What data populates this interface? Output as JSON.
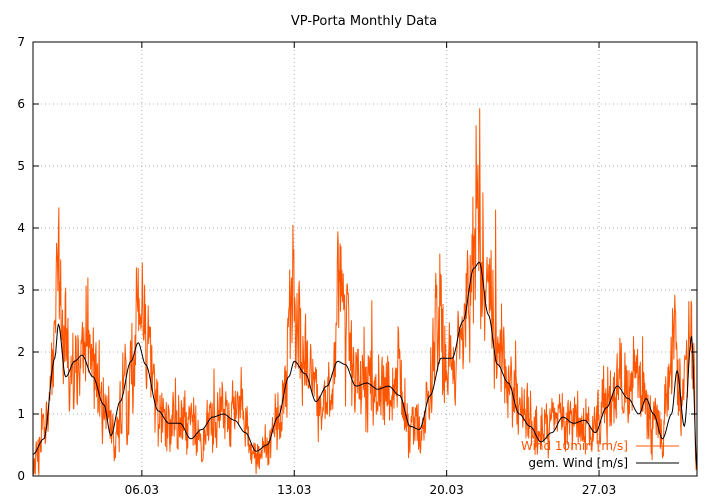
{
  "chart_data": {
    "type": "line",
    "title": "VP-Porta Monthly Data",
    "xlabel": "",
    "ylabel": "",
    "xlim": [
      "2024-03-01 00:00",
      "2024-03-31 12:00"
    ],
    "ylim": [
      0,
      7
    ],
    "y_ticks": [
      0,
      1,
      2,
      3,
      4,
      5,
      6,
      7
    ],
    "x_ticks": [
      {
        "date": "2024-03-06 00:00",
        "label": "06.03"
      },
      {
        "date": "2024-03-13 00:00",
        "label": "13.03"
      },
      {
        "date": "2024-03-20 00:00",
        "label": "20.03"
      },
      {
        "date": "2024-03-27 00:00",
        "label": "27.03"
      }
    ],
    "grid": true,
    "legend_position": "bottom-right",
    "series": [
      {
        "name": "Wind 10min [m/s]",
        "color": "#ff5500",
        "style": "noisy",
        "key_points": [
          [
            "2024-03-01 00:00",
            0.3
          ],
          [
            "2024-03-01 12:00",
            0.7
          ],
          [
            "2024-03-01 22:00",
            1.8
          ],
          [
            "2024-03-02 02:00",
            3.3
          ],
          [
            "2024-03-02 12:00",
            2.0
          ],
          [
            "2024-03-03 00:00",
            1.5
          ],
          [
            "2024-03-03 10:00",
            2.3
          ],
          [
            "2024-03-03 22:00",
            1.7
          ],
          [
            "2024-03-04 10:00",
            1.0
          ],
          [
            "2024-03-04 18:00",
            0.6
          ],
          [
            "2024-03-05 06:00",
            1.5
          ],
          [
            "2024-03-05 16:00",
            2.0
          ],
          [
            "2024-03-05 21:00",
            3.5
          ],
          [
            "2024-03-06 04:00",
            2.0
          ],
          [
            "2024-03-06 18:00",
            1.0
          ],
          [
            "2024-03-07 12:00",
            0.8
          ],
          [
            "2024-03-08 06:00",
            0.9
          ],
          [
            "2024-03-08 18:00",
            0.5
          ],
          [
            "2024-03-09 06:00",
            1.0
          ],
          [
            "2024-03-09 18:00",
            1.1
          ],
          [
            "2024-03-10 12:00",
            1.0
          ],
          [
            "2024-03-11 06:00",
            0.3
          ],
          [
            "2024-03-11 18:00",
            0.6
          ],
          [
            "2024-03-12 12:00",
            1.2
          ],
          [
            "2024-03-12 22:00",
            2.8
          ],
          [
            "2024-03-13 04:00",
            2.2
          ],
          [
            "2024-03-13 16:00",
            1.5
          ],
          [
            "2024-03-14 06:00",
            1.1
          ],
          [
            "2024-03-14 20:00",
            1.6
          ],
          [
            "2024-03-15 02:00",
            3.8
          ],
          [
            "2024-03-15 08:00",
            2.2
          ],
          [
            "2024-03-15 20:00",
            1.4
          ],
          [
            "2024-03-16 12:00",
            1.5
          ],
          [
            "2024-03-17 06:00",
            1.3
          ],
          [
            "2024-03-17 18:00",
            1.6
          ],
          [
            "2024-03-18 08:00",
            0.8
          ],
          [
            "2024-03-18 20:00",
            0.7
          ],
          [
            "2024-03-19 06:00",
            1.4
          ],
          [
            "2024-03-19 14:00",
            2.8
          ],
          [
            "2024-03-19 22:00",
            2.0
          ],
          [
            "2024-03-20 12:00",
            1.8
          ],
          [
            "2024-03-20 22:00",
            2.4
          ],
          [
            "2024-03-21 06:00",
            3.4
          ],
          [
            "2024-03-21 08:00",
            5.2
          ],
          [
            "2024-03-21 10:00",
            3.8
          ],
          [
            "2024-03-21 20:00",
            3.0
          ],
          [
            "2024-03-22 08:00",
            2.0
          ],
          [
            "2024-03-22 20:00",
            1.5
          ],
          [
            "2024-03-23 12:00",
            1.1
          ],
          [
            "2024-03-24 06:00",
            0.7
          ],
          [
            "2024-03-24 18:00",
            1.0
          ],
          [
            "2024-03-25 12:00",
            0.8
          ],
          [
            "2024-03-26 06:00",
            0.9
          ],
          [
            "2024-03-26 16:00",
            0.6
          ],
          [
            "2024-03-27 06:00",
            1.2
          ],
          [
            "2024-03-27 20:00",
            1.5
          ],
          [
            "2024-03-28 08:00",
            1.3
          ],
          [
            "2024-03-28 20:00",
            1.6
          ],
          [
            "2024-03-29 08:00",
            1.0
          ],
          [
            "2024-03-29 20:00",
            0.7
          ],
          [
            "2024-03-30 06:00",
            1.5
          ],
          [
            "2024-03-30 12:00",
            2.1
          ],
          [
            "2024-03-30 20:00",
            1.0
          ],
          [
            "2024-03-31 00:00",
            1.8
          ],
          [
            "2024-03-31 06:00",
            2.2
          ],
          [
            "2024-03-31 12:00",
            0.2
          ]
        ]
      },
      {
        "name": "gem. Wind [m/s]",
        "color": "#000000",
        "style": "smooth",
        "key_points": [
          [
            "2024-03-01 00:00",
            0.35
          ],
          [
            "2024-03-01 12:00",
            0.6
          ],
          [
            "2024-03-02 00:00",
            1.9
          ],
          [
            "2024-03-02 04:00",
            2.45
          ],
          [
            "2024-03-02 12:00",
            1.6
          ],
          [
            "2024-03-02 22:00",
            1.85
          ],
          [
            "2024-03-03 06:00",
            1.95
          ],
          [
            "2024-03-03 18:00",
            1.6
          ],
          [
            "2024-03-04 06:00",
            1.15
          ],
          [
            "2024-03-04 14:00",
            0.65
          ],
          [
            "2024-03-05 00:00",
            1.2
          ],
          [
            "2024-03-05 12:00",
            1.85
          ],
          [
            "2024-03-05 20:00",
            2.15
          ],
          [
            "2024-03-06 04:00",
            1.8
          ],
          [
            "2024-03-06 18:00",
            1.05
          ],
          [
            "2024-03-07 06:00",
            0.85
          ],
          [
            "2024-03-07 18:00",
            0.85
          ],
          [
            "2024-03-08 06:00",
            0.6
          ],
          [
            "2024-03-08 18:00",
            0.75
          ],
          [
            "2024-03-09 06:00",
            0.95
          ],
          [
            "2024-03-09 18:00",
            1.0
          ],
          [
            "2024-03-10 06:00",
            0.9
          ],
          [
            "2024-03-10 18:00",
            0.7
          ],
          [
            "2024-03-11 06:00",
            0.4
          ],
          [
            "2024-03-11 18:00",
            0.5
          ],
          [
            "2024-03-12 06:00",
            0.95
          ],
          [
            "2024-03-12 18:00",
            1.6
          ],
          [
            "2024-03-13 00:00",
            1.85
          ],
          [
            "2024-03-13 12:00",
            1.65
          ],
          [
            "2024-03-14 00:00",
            1.2
          ],
          [
            "2024-03-14 12:00",
            1.45
          ],
          [
            "2024-03-15 00:00",
            1.85
          ],
          [
            "2024-03-15 08:00",
            1.8
          ],
          [
            "2024-03-15 20:00",
            1.45
          ],
          [
            "2024-03-16 08:00",
            1.5
          ],
          [
            "2024-03-16 20:00",
            1.4
          ],
          [
            "2024-03-17 08:00",
            1.45
          ],
          [
            "2024-03-17 20:00",
            1.3
          ],
          [
            "2024-03-18 08:00",
            0.8
          ],
          [
            "2024-03-18 18:00",
            0.75
          ],
          [
            "2024-03-19 06:00",
            1.3
          ],
          [
            "2024-03-19 18:00",
            1.9
          ],
          [
            "2024-03-20 06:00",
            1.9
          ],
          [
            "2024-03-20 18:00",
            2.5
          ],
          [
            "2024-03-21 06:00",
            3.35
          ],
          [
            "2024-03-21 12:00",
            3.45
          ],
          [
            "2024-03-21 22:00",
            2.6
          ],
          [
            "2024-03-22 08:00",
            1.8
          ],
          [
            "2024-03-22 20:00",
            1.5
          ],
          [
            "2024-03-23 08:00",
            1.0
          ],
          [
            "2024-03-23 20:00",
            0.8
          ],
          [
            "2024-03-24 08:00",
            0.55
          ],
          [
            "2024-03-24 20:00",
            0.7
          ],
          [
            "2024-03-25 08:00",
            0.95
          ],
          [
            "2024-03-25 20:00",
            0.85
          ],
          [
            "2024-03-26 08:00",
            0.9
          ],
          [
            "2024-03-26 20:00",
            0.7
          ],
          [
            "2024-03-27 08:00",
            1.1
          ],
          [
            "2024-03-27 20:00",
            1.45
          ],
          [
            "2024-03-28 08:00",
            1.25
          ],
          [
            "2024-03-28 20:00",
            1.0
          ],
          [
            "2024-03-29 04:00",
            1.25
          ],
          [
            "2024-03-29 12:00",
            1.0
          ],
          [
            "2024-03-29 22:00",
            0.6
          ],
          [
            "2024-03-30 08:00",
            1.0
          ],
          [
            "2024-03-30 14:00",
            1.7
          ],
          [
            "2024-03-30 22:00",
            0.8
          ],
          [
            "2024-03-31 06:00",
            2.25
          ],
          [
            "2024-03-31 12:00",
            0.1
          ]
        ]
      }
    ]
  }
}
